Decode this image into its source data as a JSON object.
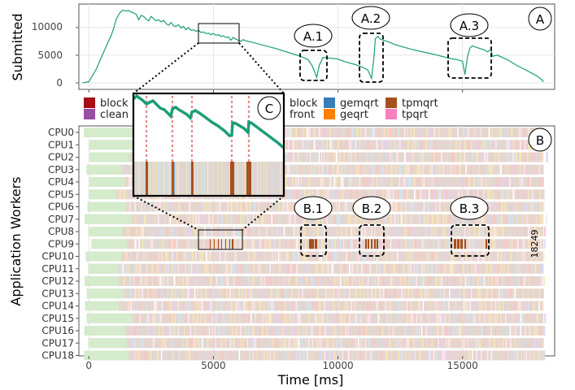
{
  "chart_data": [
    {
      "type": "line",
      "panel": "A",
      "ylabel": "Submitted",
      "yticks": [
        "0",
        "5000",
        "10000"
      ],
      "ylim": [
        0,
        13500
      ],
      "xlim": [
        -400,
        18700
      ],
      "series": [
        {
          "color": "#1b9e77",
          "x": [
            -250,
            0,
            300,
            600,
            900,
            1000,
            1100,
            1250,
            1350,
            1500,
            1600,
            1700,
            1800,
            1900,
            2000,
            2100,
            2200,
            2300,
            2400,
            2500,
            2600,
            2700,
            2800,
            2900,
            3000,
            3100,
            3200,
            3300,
            3400,
            3500,
            3600,
            3700,
            3800,
            3900,
            4000,
            4100,
            4200,
            4300,
            4400,
            4500,
            4600,
            4700,
            4800,
            4900,
            5000,
            5100,
            5200,
            5300,
            5400,
            5500,
            5600,
            5700,
            5800,
            5900,
            6000,
            6100,
            6200,
            6300,
            6600,
            7000,
            7500,
            8000,
            8500,
            8800,
            8950,
            9050,
            9150,
            9250,
            9400,
            9600,
            9800,
            10000,
            10300,
            10700,
            11000,
            11200,
            11350,
            11450,
            11500,
            11600,
            11700,
            11900,
            12100,
            12300,
            12600,
            13000,
            13500,
            14000,
            14500,
            14800,
            15000,
            15100,
            15200,
            15300,
            15400,
            15500,
            15700,
            15900,
            16000,
            16150,
            16200,
            16400,
            16800,
            17200,
            17600,
            18000,
            18200,
            18249
          ],
          "y": [
            0,
            200,
            2500,
            5600,
            8600,
            9900,
            11500,
            12700,
            13100,
            13000,
            13050,
            12800,
            12600,
            12400,
            11400,
            12200,
            12000,
            11500,
            11200,
            12000,
            11600,
            11200,
            11400,
            11000,
            11300,
            10700,
            10400,
            10900,
            10300,
            10200,
            10500,
            9900,
            10200,
            9600,
            10000,
            9500,
            9600,
            9300,
            9500,
            9100,
            9200,
            8900,
            9000,
            8700,
            8900,
            8600,
            8700,
            8400,
            8500,
            8200,
            8300,
            7700,
            8200,
            7900,
            7700,
            7500,
            7800,
            7600,
            7300,
            6800,
            6200,
            5500,
            4800,
            4200,
            3200,
            2200,
            1000,
            3200,
            4600,
            4500,
            4400,
            4300,
            3800,
            3300,
            2800,
            2300,
            800,
            4800,
            8000,
            8400,
            7900,
            7600,
            7300,
            6900,
            6500,
            6000,
            5500,
            5000,
            4400,
            4200,
            3900,
            1500,
            4700,
            6300,
            6700,
            6500,
            6200,
            5900,
            5600,
            6000,
            4800,
            5000,
            4200,
            3100,
            2200,
            1200,
            500,
            200
          ]
        }
      ],
      "annotations": [
        "A",
        "A.1",
        "A.2",
        "A.3"
      ]
    },
    {
      "type": "heatmap",
      "panel": "B",
      "xlabel": "Time [ms]",
      "ylabel": "Application Workers",
      "xticks": [
        "0",
        "5000",
        "10000",
        "15000"
      ],
      "rows": [
        "CPU0",
        "CPU1",
        "CPU2",
        "CPU3",
        "CPU4",
        "CPU5",
        "CPU6",
        "CPU7",
        "CPU8",
        "CPU9",
        "CPU10",
        "CPU11",
        "CPU12",
        "CPU13",
        "CPU14",
        "CPU15",
        "CPU16",
        "CPU17",
        "CPU18"
      ],
      "end_label": "18249",
      "xlim": [
        -400,
        18700
      ],
      "annotations": [
        "B",
        "B.1",
        "B.2",
        "B.3",
        "C"
      ]
    }
  ],
  "legend": [
    {
      "label": "block",
      "color": "#a50f15"
    },
    {
      "label": "clean",
      "color": "#984ea3"
    },
    {
      "label": "block",
      "color": "#1f1f1f"
    },
    {
      "label": "front",
      "color": "#1f1f1f"
    },
    {
      "label": "gemqrt",
      "color": "#377eb8"
    },
    {
      "label": "geqrt",
      "color": "#ff7f00"
    },
    {
      "label": "tpmqrt",
      "color": "#a6501e"
    },
    {
      "label": "tpqrt",
      "color": "#f781bf"
    }
  ]
}
